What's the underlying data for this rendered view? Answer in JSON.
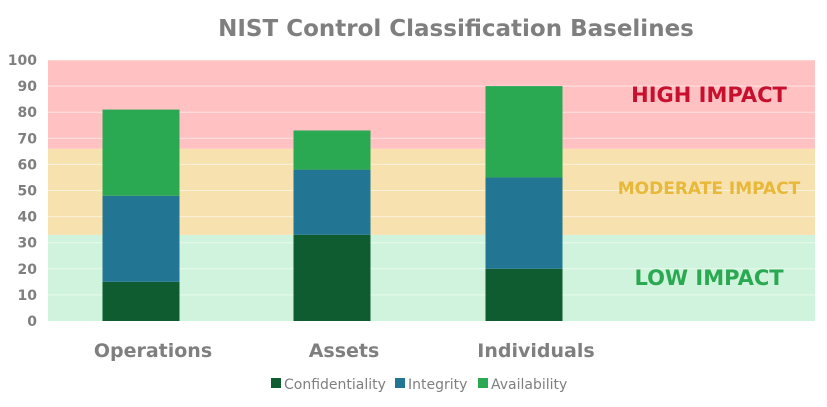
{
  "chart_data": {
    "type": "bar",
    "stacked": true,
    "title": "NIST Control Classification Baselines",
    "xlabel": "",
    "ylabel": "",
    "categories": [
      "Operations",
      "Assets",
      "Individuals"
    ],
    "series": [
      {
        "name": "Confidentiality",
        "values": [
          15,
          33,
          20
        ],
        "color": "#0e5c2f"
      },
      {
        "name": "Integrity",
        "values": [
          33,
          25,
          35
        ],
        "color": "#237693"
      },
      {
        "name": "Availability",
        "values": [
          33,
          15,
          35
        ],
        "color": "#2aa952"
      }
    ],
    "ylim": [
      0,
      100
    ],
    "yticks": [
      0,
      10,
      20,
      30,
      40,
      50,
      60,
      70,
      80,
      90,
      100
    ],
    "grid": true,
    "legend": "bottom",
    "bands": [
      {
        "label": "LOW IMPACT",
        "from": 0,
        "to": 33,
        "fill": "#cff3dc",
        "text_color": "#2aa952"
      },
      {
        "label": "MODERATE IMPACT",
        "from": 33,
        "to": 66,
        "fill": "#f7e1ae",
        "text_color": "#e8b83a"
      },
      {
        "label": "HIGH IMPACT",
        "from": 66,
        "to": 100,
        "fill": "#ffc1c1",
        "text_color": "#c8102e"
      }
    ]
  }
}
